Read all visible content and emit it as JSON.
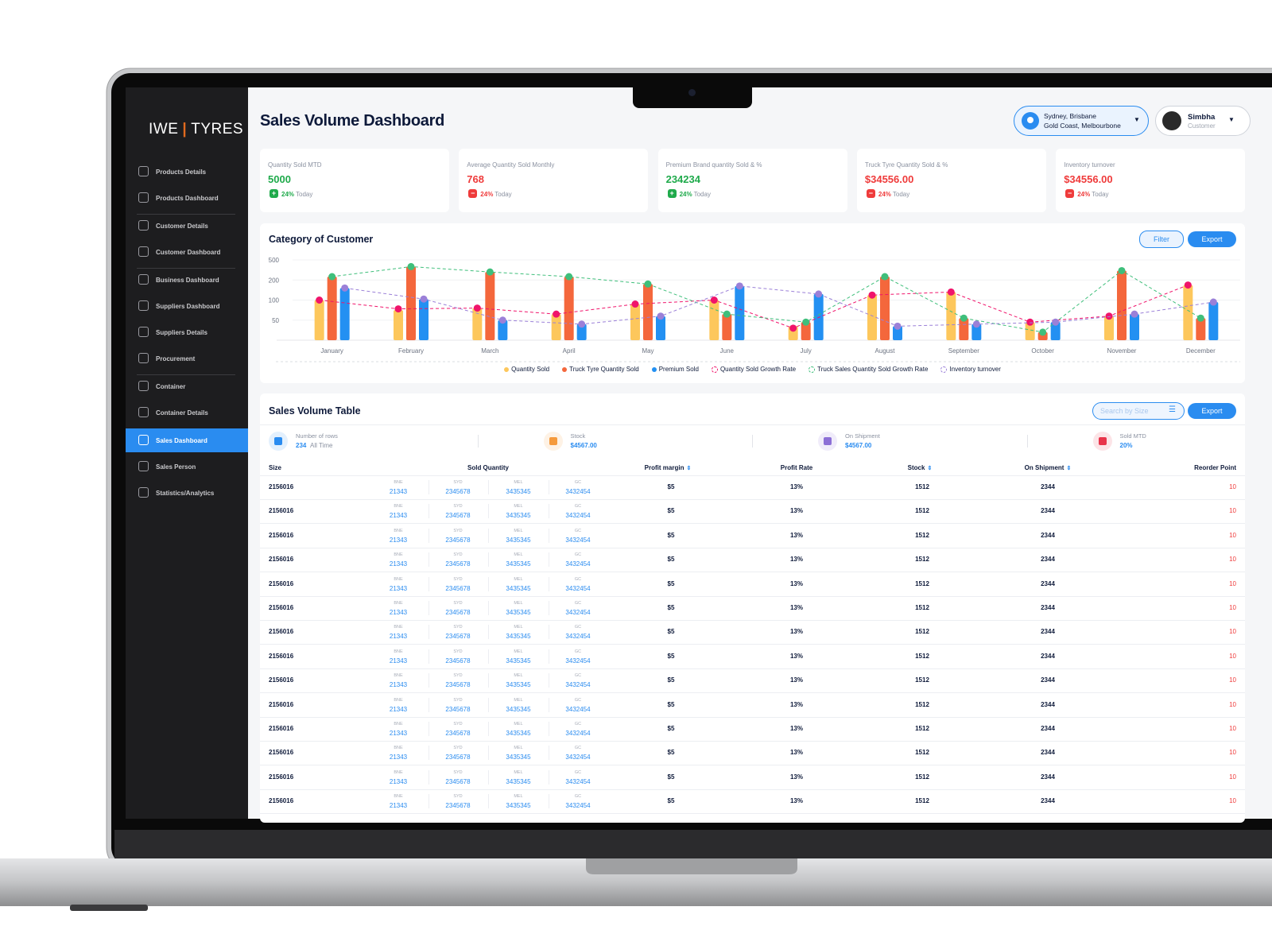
{
  "sidebar": {
    "logo_left": "IWE",
    "logo_right": "TYRES",
    "nav": [
      [
        {
          "label": "Products Details"
        },
        {
          "label": "Products Dashboard"
        }
      ],
      [
        {
          "label": "Customer Details"
        },
        {
          "label": "Customer Dashboard"
        }
      ],
      [
        {
          "label": "Business Dashboard"
        },
        {
          "label": "Suppliers Dashboard"
        },
        {
          "label": "Suppliers Details"
        },
        {
          "label": "Procurement"
        }
      ],
      [
        {
          "label": "Container"
        },
        {
          "label": "Container Details"
        }
      ],
      [
        {
          "label": "Sales Dashboard",
          "active": true
        },
        {
          "label": "Sales Person"
        },
        {
          "label": "Statistics/Analytics"
        }
      ]
    ]
  },
  "header": {
    "title": "Sales Volume Dashboard",
    "location_line1": "Sydney, Brisbane",
    "location_line2": "Gold Coast, Melbourbone",
    "user_name": "Simbha",
    "user_role": "Customer"
  },
  "kpis": [
    {
      "label": "Quantity Sold MTD",
      "value": 5000,
      "change": "24%",
      "period": "Today",
      "trend": "up"
    },
    {
      "label": "Average Quantity Sold Monthly",
      "value": 768,
      "change": "24%",
      "period": "Today",
      "trend": "down"
    },
    {
      "label": "Premium Brand quantity Sold & %",
      "value": 234234,
      "change": "24%",
      "period": "Today",
      "trend": "up"
    },
    {
      "label": "Truck Tyre Quantity Sold & %",
      "value": "$34556.00",
      "change": "24%",
      "period": "Today",
      "trend": "down"
    },
    {
      "label": "Inventory turnover",
      "value": "$34556.00",
      "change": "24%",
      "period": "Today",
      "trend": "down"
    }
  ],
  "chart_card": {
    "title": "Category of Customer",
    "filter_button": "Filter",
    "export_button": "Export"
  },
  "chart_data": {
    "type": "bar",
    "categories": [
      "January",
      "February",
      "March",
      "April",
      "May",
      "June",
      "July",
      "August",
      "September",
      "October",
      "November",
      "December"
    ],
    "ylim": [
      0,
      500
    ],
    "yticks": [
      500,
      200,
      100,
      50
    ],
    "grid": true,
    "series": [
      {
        "name": "Quantity Sold",
        "color": "#fdc75c",
        "values": [
          100,
          75,
          80,
          65,
          90,
          100,
          35,
          125,
          140,
          45,
          60,
          175
        ]
      },
      {
        "name": "Truck Tyre Quantity Sold",
        "color": "#f4673c",
        "values": [
          250,
          400,
          320,
          250,
          180,
          65,
          45,
          250,
          55,
          20,
          340,
          55
        ]
      },
      {
        "name": "Premium Sold",
        "color": "#2390f2",
        "values": [
          160,
          105,
          50,
          40,
          60,
          170,
          130,
          35,
          40,
          45,
          65,
          95
        ]
      },
      {
        "name": "Quantity Sold Growth Rate",
        "color": "#f0146b",
        "type": "line",
        "values": [
          100,
          78,
          80,
          65,
          90,
          100,
          30,
          125,
          140,
          45,
          60,
          175
        ]
      },
      {
        "name": "Truck Sales Quantity Sold Growth Rate",
        "color": "#3fbf7b",
        "type": "line",
        "values": [
          250,
          400,
          320,
          250,
          180,
          65,
          45,
          250,
          55,
          20,
          340,
          55
        ]
      },
      {
        "name": "Inventory turnover",
        "color": "#9b80d8",
        "type": "line",
        "values": [
          160,
          105,
          50,
          40,
          60,
          170,
          130,
          35,
          40,
          45,
          65,
          95
        ]
      }
    ]
  },
  "table_card": {
    "title": "Sales Volume Table",
    "search_placeholder": "Search by Size",
    "export_button": "Export",
    "summary": [
      {
        "label": "Number of rows",
        "value": 234,
        "sub": "All Time"
      },
      {
        "label": "Stock",
        "value": "$4567.00"
      },
      {
        "label": "On Shipment",
        "value": "$4567.00"
      },
      {
        "label": "Sold MTD",
        "value": "20%"
      }
    ],
    "columns": [
      {
        "label": "Size"
      },
      {
        "label": "Sold Quantity"
      },
      {
        "label": "Profit margin",
        "sortable": true
      },
      {
        "label": "Profit Rate"
      },
      {
        "label": "Stock",
        "sortable": true
      },
      {
        "label": "On Shipment",
        "sortable": true
      },
      {
        "label": "Reorder Point"
      }
    ],
    "rows": [
      {
        "size": 2156016,
        "sold": [
          {
            "loc": "BNE",
            "qty": 21343
          },
          {
            "loc": "SYD",
            "qty": 2345678
          },
          {
            "loc": "MEL",
            "qty": 3435345
          },
          {
            "loc": "GC",
            "qty": 3432454
          }
        ],
        "profit_margin": "$5",
        "profit_rate": "13%",
        "stock": 1512,
        "on_shipment": 2344,
        "reorder_point": 10
      },
      {
        "size": 2156016,
        "sold": [
          {
            "loc": "BNE",
            "qty": 21343
          },
          {
            "loc": "SYD",
            "qty": 2345678
          },
          {
            "loc": "MEL",
            "qty": 3435345
          },
          {
            "loc": "GC",
            "qty": 3432454
          }
        ],
        "profit_margin": "$5",
        "profit_rate": "13%",
        "stock": 1512,
        "on_shipment": 2344,
        "reorder_point": 10
      },
      {
        "size": 2156016,
        "sold": [
          {
            "loc": "BNE",
            "qty": 21343
          },
          {
            "loc": "SYD",
            "qty": 2345678
          },
          {
            "loc": "MEL",
            "qty": 3435345
          },
          {
            "loc": "GC",
            "qty": 3432454
          }
        ],
        "profit_margin": "$5",
        "profit_rate": "13%",
        "stock": 1512,
        "on_shipment": 2344,
        "reorder_point": 10
      },
      {
        "size": 2156016,
        "sold": [
          {
            "loc": "BNE",
            "qty": 21343
          },
          {
            "loc": "SYD",
            "qty": 2345678
          },
          {
            "loc": "MEL",
            "qty": 3435345
          },
          {
            "loc": "GC",
            "qty": 3432454
          }
        ],
        "profit_margin": "$5",
        "profit_rate": "13%",
        "stock": 1512,
        "on_shipment": 2344,
        "reorder_point": 10
      },
      {
        "size": 2156016,
        "sold": [
          {
            "loc": "BNE",
            "qty": 21343
          },
          {
            "loc": "SYD",
            "qty": 2345678
          },
          {
            "loc": "MEL",
            "qty": 3435345
          },
          {
            "loc": "GC",
            "qty": 3432454
          }
        ],
        "profit_margin": "$5",
        "profit_rate": "13%",
        "stock": 1512,
        "on_shipment": 2344,
        "reorder_point": 10
      },
      {
        "size": 2156016,
        "sold": [
          {
            "loc": "BNE",
            "qty": 21343
          },
          {
            "loc": "SYD",
            "qty": 2345678
          },
          {
            "loc": "MEL",
            "qty": 3435345
          },
          {
            "loc": "GC",
            "qty": 3432454
          }
        ],
        "profit_margin": "$5",
        "profit_rate": "13%",
        "stock": 1512,
        "on_shipment": 2344,
        "reorder_point": 10
      },
      {
        "size": 2156016,
        "sold": [
          {
            "loc": "BNE",
            "qty": 21343
          },
          {
            "loc": "SYD",
            "qty": 2345678
          },
          {
            "loc": "MEL",
            "qty": 3435345
          },
          {
            "loc": "GC",
            "qty": 3432454
          }
        ],
        "profit_margin": "$5",
        "profit_rate": "13%",
        "stock": 1512,
        "on_shipment": 2344,
        "reorder_point": 10
      },
      {
        "size": 2156016,
        "sold": [
          {
            "loc": "BNE",
            "qty": 21343
          },
          {
            "loc": "SYD",
            "qty": 2345678
          },
          {
            "loc": "MEL",
            "qty": 3435345
          },
          {
            "loc": "GC",
            "qty": 3432454
          }
        ],
        "profit_margin": "$5",
        "profit_rate": "13%",
        "stock": 1512,
        "on_shipment": 2344,
        "reorder_point": 10
      },
      {
        "size": 2156016,
        "sold": [
          {
            "loc": "BNE",
            "qty": 21343
          },
          {
            "loc": "SYD",
            "qty": 2345678
          },
          {
            "loc": "MEL",
            "qty": 3435345
          },
          {
            "loc": "GC",
            "qty": 3432454
          }
        ],
        "profit_margin": "$5",
        "profit_rate": "13%",
        "stock": 1512,
        "on_shipment": 2344,
        "reorder_point": 10
      },
      {
        "size": 2156016,
        "sold": [
          {
            "loc": "BNE",
            "qty": 21343
          },
          {
            "loc": "SYD",
            "qty": 2345678
          },
          {
            "loc": "MEL",
            "qty": 3435345
          },
          {
            "loc": "GC",
            "qty": 3432454
          }
        ],
        "profit_margin": "$5",
        "profit_rate": "13%",
        "stock": 1512,
        "on_shipment": 2344,
        "reorder_point": 10
      },
      {
        "size": 2156016,
        "sold": [
          {
            "loc": "BNE",
            "qty": 21343
          },
          {
            "loc": "SYD",
            "qty": 2345678
          },
          {
            "loc": "MEL",
            "qty": 3435345
          },
          {
            "loc": "GC",
            "qty": 3432454
          }
        ],
        "profit_margin": "$5",
        "profit_rate": "13%",
        "stock": 1512,
        "on_shipment": 2344,
        "reorder_point": 10
      },
      {
        "size": 2156016,
        "sold": [
          {
            "loc": "BNE",
            "qty": 21343
          },
          {
            "loc": "SYD",
            "qty": 2345678
          },
          {
            "loc": "MEL",
            "qty": 3435345
          },
          {
            "loc": "GC",
            "qty": 3432454
          }
        ],
        "profit_margin": "$5",
        "profit_rate": "13%",
        "stock": 1512,
        "on_shipment": 2344,
        "reorder_point": 10
      },
      {
        "size": 2156016,
        "sold": [
          {
            "loc": "BNE",
            "qty": 21343
          },
          {
            "loc": "SYD",
            "qty": 2345678
          },
          {
            "loc": "MEL",
            "qty": 3435345
          },
          {
            "loc": "GC",
            "qty": 3432454
          }
        ],
        "profit_margin": "$5",
        "profit_rate": "13%",
        "stock": 1512,
        "on_shipment": 2344,
        "reorder_point": 10
      },
      {
        "size": 2156016,
        "sold": [
          {
            "loc": "BNE",
            "qty": 21343
          },
          {
            "loc": "SYD",
            "qty": 2345678
          },
          {
            "loc": "MEL",
            "qty": 3435345
          },
          {
            "loc": "GC",
            "qty": 3432454
          }
        ],
        "profit_margin": "$5",
        "profit_rate": "13%",
        "stock": 1512,
        "on_shipment": 2344,
        "reorder_point": 10
      }
    ]
  }
}
